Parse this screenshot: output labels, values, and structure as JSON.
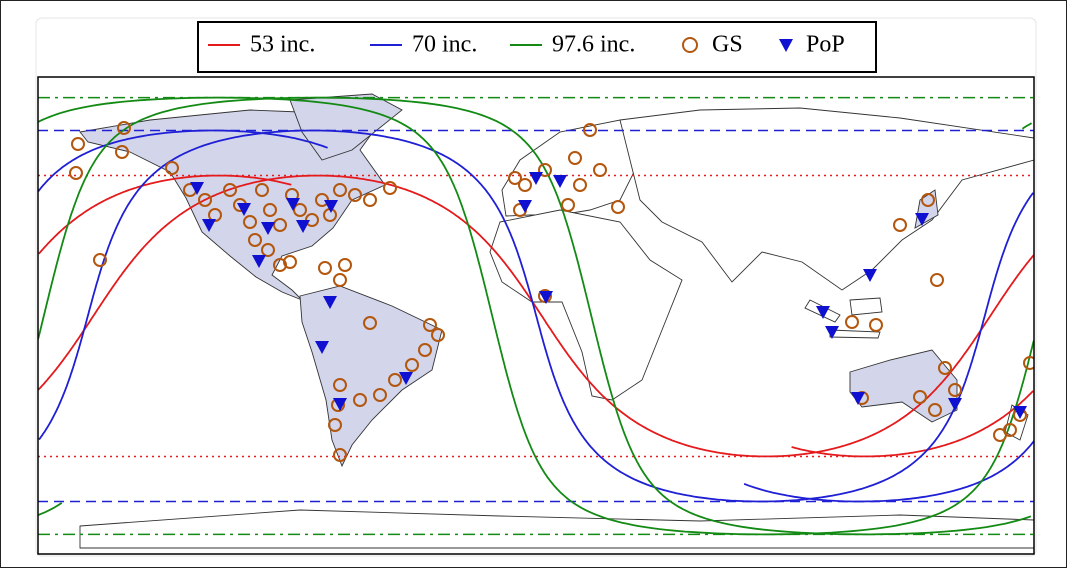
{
  "legend": {
    "items": [
      {
        "label": "53 inc.",
        "color": "#e41a1c",
        "marker": "line"
      },
      {
        "label": "70 inc.",
        "color": "#1f1fd6",
        "marker": "line"
      },
      {
        "label": "97.6 inc.",
        "color": "#138a13",
        "marker": "line"
      },
      {
        "label": "GS",
        "color": "#b3570f",
        "marker": "circle"
      },
      {
        "label": "PoP",
        "color": "#1010d0",
        "marker": "triangle"
      }
    ]
  }
}
